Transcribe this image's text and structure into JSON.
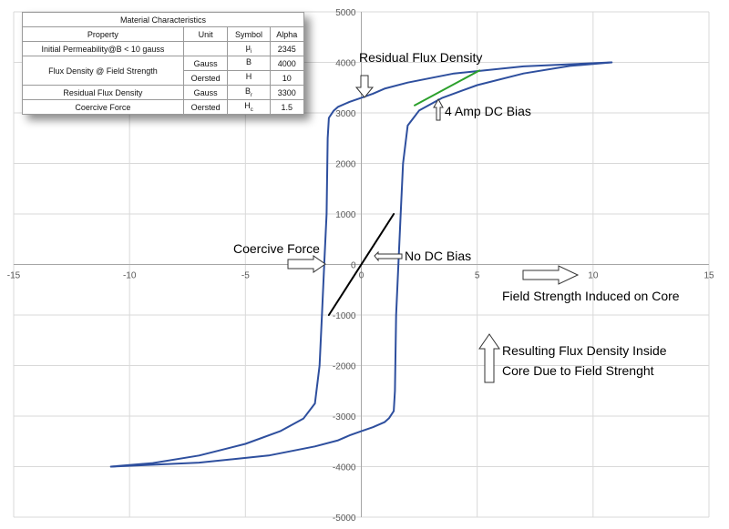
{
  "chart_data": {
    "type": "line",
    "title": "",
    "xlabel": "",
    "ylabel": "",
    "xlim": [
      -15,
      15
    ],
    "ylim": [
      -5000,
      5000
    ],
    "x_ticks": [
      -15,
      -10,
      -5,
      0,
      5,
      10,
      15
    ],
    "y_ticks": [
      -5000,
      -4000,
      -3000,
      -2000,
      -1000,
      0,
      1000,
      2000,
      3000,
      4000,
      5000
    ],
    "grid": true,
    "series": [
      {
        "color": "#2e4f9e",
        "x": [
          10.8,
          7,
          4,
          2,
          1,
          0.5,
          0,
          -0.5,
          -1,
          -1.2,
          -1.4,
          -1.45,
          -1.5,
          -1.6,
          -1.7,
          -1.8,
          -2,
          -2.5,
          -3.5,
          -5,
          -7,
          -9,
          -10.8
        ],
        "y": [
          4000,
          3920,
          3780,
          3600,
          3480,
          3380,
          3300,
          3220,
          3120,
          3040,
          2900,
          2500,
          1000,
          0,
          -1000,
          -2000,
          -2750,
          -3050,
          -3300,
          -3550,
          -3780,
          -3930,
          -4000
        ]
      },
      {
        "color": "#2e4f9e",
        "x": [
          -10.8,
          -7,
          -4,
          -2,
          -1,
          -0.5,
          0,
          0.5,
          1,
          1.2,
          1.4,
          1.45,
          1.5,
          1.6,
          1.7,
          1.8,
          2,
          2.5,
          3.5,
          5,
          7,
          9,
          10.8
        ],
        "y": [
          -4000,
          -3920,
          -3780,
          -3600,
          -3480,
          -3380,
          -3300,
          -3220,
          -3120,
          -3040,
          -2900,
          -2500,
          -1000,
          0,
          1000,
          2000,
          2750,
          3050,
          3300,
          3550,
          3780,
          3930,
          4000
        ]
      },
      {
        "color": "#000000",
        "x": [
          -1.4,
          1.4
        ],
        "y": [
          -1000,
          1000
        ]
      },
      {
        "color": "#2ca02c",
        "x": [
          2.3,
          5.1
        ],
        "y": [
          3150,
          3840
        ]
      }
    ],
    "annotations": [
      {
        "text": "Residual Flux Density"
      },
      {
        "text": "4 Amp DC Bias"
      },
      {
        "text": "Coercive Force"
      },
      {
        "text": "No DC Bias"
      },
      {
        "text": "Field Strength Induced on Core"
      },
      {
        "text": "Resulting Flux Density Inside"
      },
      {
        "text": "Core Due to Field Strenght"
      }
    ]
  },
  "table": {
    "title": "Material Characteristics",
    "headers": [
      "Property",
      "Unit",
      "Symbol",
      "Alpha"
    ],
    "rows": [
      {
        "property": "Initial Permeability@B < 10 gauss",
        "unit": "",
        "symbol": "μ",
        "symbol_sub": "i",
        "value": "2345"
      },
      {
        "property": "Flux Density @ Field Strength",
        "unit": "Gauss",
        "symbol": "B",
        "symbol_sub": "",
        "value": "4000"
      },
      {
        "property": "",
        "unit": "Oersted",
        "symbol": "H",
        "symbol_sub": "",
        "value": "10"
      },
      {
        "property": "Residual Flux Density",
        "unit": "Gauss",
        "symbol": "B",
        "symbol_sub": "r",
        "value": "3300"
      },
      {
        "property": "Coercive Force",
        "unit": "Oersted",
        "symbol": "H",
        "symbol_sub": "c",
        "value": "1.5"
      }
    ]
  }
}
